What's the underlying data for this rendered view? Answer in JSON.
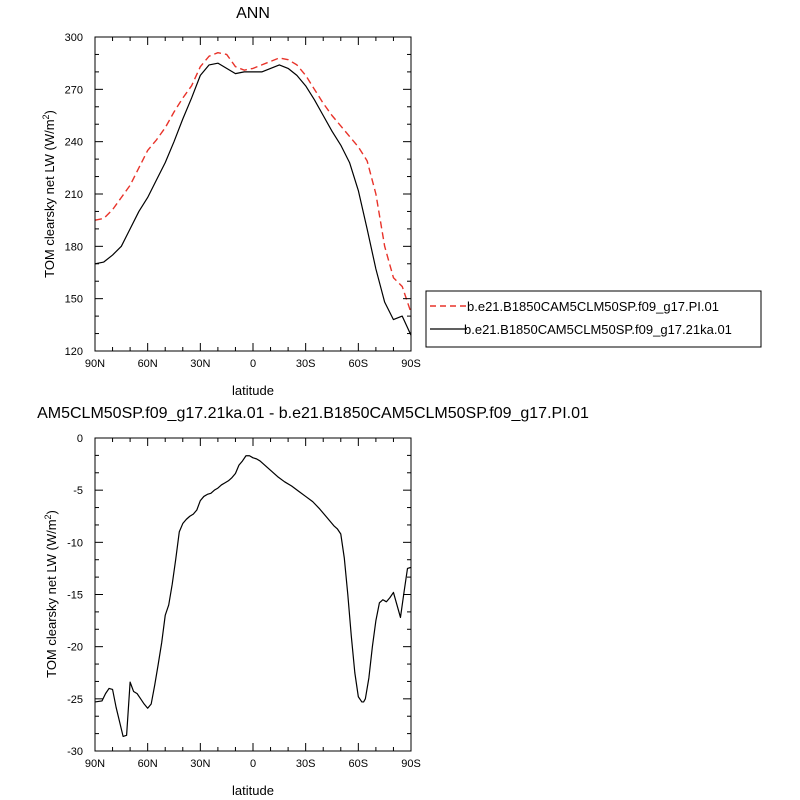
{
  "chart_data": [
    {
      "type": "line",
      "title": "ANN",
      "xlabel": "latitude",
      "ylabel": "TOM clearsky net LW (W/m",
      "ylabel_sup": "2",
      "ylabel_end": ")",
      "xlim": [
        -90,
        90
      ],
      "ylim": [
        120,
        300
      ],
      "x_ticks": [
        -90,
        -60,
        -30,
        0,
        30,
        60,
        90
      ],
      "x_tick_labels": [
        "90N",
        "60N",
        "30N",
        "0",
        "30S",
        "60S",
        "90S"
      ],
      "y_ticks": [
        120,
        150,
        180,
        210,
        240,
        270,
        300
      ],
      "y_tick_labels": [
        "120",
        "150",
        "180",
        "210",
        "240",
        "270",
        "300"
      ],
      "grid": false,
      "legend_position": "right",
      "series": [
        {
          "name": "b.e21.B1850CAM5CLM50SP.f09_g17.PI.01",
          "color": "#e8332a",
          "dash": "dashed",
          "x": [
            -90,
            -85,
            -80,
            -75,
            -70,
            -65,
            -60,
            -55,
            -50,
            -45,
            -40,
            -35,
            -30,
            -25,
            -20,
            -15,
            -10,
            -5,
            0,
            5,
            10,
            15,
            20,
            25,
            30,
            35,
            40,
            45,
            50,
            55,
            60,
            65,
            70,
            75,
            80,
            85,
            90
          ],
          "y": [
            195,
            196,
            201,
            208,
            215,
            225,
            235,
            241,
            248,
            257,
            265,
            272,
            283,
            289,
            291,
            290,
            283,
            281,
            282,
            284,
            286,
            288,
            287,
            284,
            278,
            270,
            262,
            255,
            249,
            243,
            237,
            229,
            210,
            180,
            162,
            157,
            142
          ]
        },
        {
          "name": "b.e21.B1850CAM5CLM50SP.f09_g17.21ka.01",
          "color": "#000000",
          "dash": "solid",
          "x": [
            -90,
            -85,
            -80,
            -75,
            -70,
            -65,
            -60,
            -55,
            -50,
            -45,
            -40,
            -35,
            -30,
            -25,
            -20,
            -15,
            -10,
            -5,
            0,
            5,
            10,
            15,
            20,
            25,
            30,
            35,
            40,
            45,
            50,
            55,
            60,
            65,
            70,
            75,
            80,
            85,
            90
          ],
          "y": [
            170,
            171,
            175,
            180,
            190,
            200,
            208,
            218,
            228,
            240,
            253,
            265,
            278,
            284,
            285,
            282,
            279,
            280,
            280,
            280,
            282,
            284,
            282,
            278,
            272,
            264,
            255,
            246,
            238,
            228,
            212,
            190,
            167,
            148,
            138,
            140,
            129
          ]
        }
      ]
    },
    {
      "type": "line",
      "title": "AM5CLM50SP.f09_g17.21ka.01 - b.e21.B1850CAM5CLM50SP.f09_g17.PI.01",
      "xlabel": "latitude",
      "ylabel": "TOM clearsky net LW (W/m",
      "ylabel_sup": "2",
      "ylabel_end": ")",
      "xlim": [
        -90,
        90
      ],
      "ylim": [
        -30,
        0
      ],
      "x_ticks": [
        -90,
        -60,
        -30,
        0,
        30,
        60,
        90
      ],
      "x_tick_labels": [
        "90N",
        "60N",
        "30N",
        "0",
        "30S",
        "60S",
        "90S"
      ],
      "y_ticks": [
        -30,
        -25,
        -20,
        -15,
        -10,
        -5,
        0
      ],
      "y_tick_labels": [
        "-30",
        "-25",
        "-20",
        "-15",
        "-10",
        "-5",
        "0"
      ],
      "grid": false,
      "series": [
        {
          "color": "#000000",
          "dash": "solid",
          "x": [
            -90,
            -86,
            -84,
            -82,
            -80,
            -78,
            -76,
            -74,
            -72,
            -70,
            -68,
            -66,
            -64,
            -62,
            -60,
            -58,
            -56,
            -54,
            -52,
            -50,
            -48,
            -46,
            -44,
            -42,
            -40,
            -38,
            -36,
            -34,
            -32,
            -30,
            -28,
            -26,
            -24,
            -22,
            -20,
            -18,
            -16,
            -14,
            -12,
            -10,
            -8,
            -6,
            -4,
            -2,
            0,
            2,
            4,
            6,
            8,
            10,
            14,
            18,
            22,
            26,
            30,
            34,
            38,
            42,
            46,
            48,
            50,
            52,
            54,
            56,
            58,
            60,
            62,
            63,
            64,
            66,
            68,
            70,
            72,
            74,
            76,
            78,
            80,
            82,
            84,
            86,
            88,
            90
          ],
          "y": [
            -25.3,
            -25.2,
            -24.5,
            -24,
            -24.1,
            -25.8,
            -27.2,
            -28.6,
            -28.5,
            -23.4,
            -24.3,
            -24.5,
            -25,
            -25.5,
            -25.9,
            -25.5,
            -23.7,
            -21.7,
            -19.6,
            -17,
            -16,
            -14,
            -11.6,
            -9,
            -8.2,
            -7.8,
            -7.5,
            -7.3,
            -6.9,
            -6,
            -5.6,
            -5.4,
            -5.3,
            -5,
            -4.8,
            -4.5,
            -4.3,
            -4.1,
            -3.8,
            -3.4,
            -2.6,
            -2.2,
            -1.7,
            -1.7,
            -1.9,
            -2,
            -2.2,
            -2.5,
            -2.8,
            -3.1,
            -3.7,
            -4.2,
            -4.6,
            -5.1,
            -5.6,
            -6.1,
            -6.8,
            -7.6,
            -8.4,
            -8.7,
            -9.2,
            -11.5,
            -15,
            -19,
            -22.5,
            -24.8,
            -25.3,
            -25.3,
            -25,
            -23,
            -20,
            -17.5,
            -15.8,
            -15.5,
            -15.7,
            -15.3,
            -14.8,
            -16,
            -17.2,
            -14.8,
            -12.5,
            -12.4
          ]
        }
      ]
    }
  ]
}
